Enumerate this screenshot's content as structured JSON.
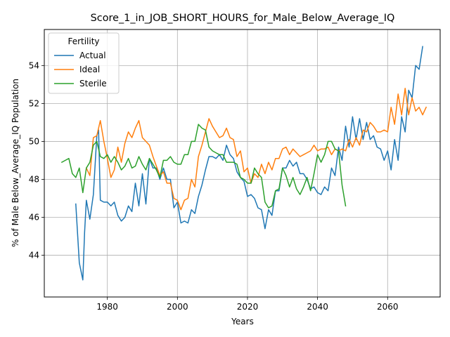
{
  "chart_data": {
    "type": "line",
    "title": "Score_1_in_JOB_SHORT_HOURS_for_Male_Below_Average_IQ",
    "xlabel": "Years",
    "ylabel": "% of Male Below_Average_IQ Population",
    "xlim": [
      1962,
      2075
    ],
    "ylim": [
      41.8,
      55.9
    ],
    "xticks": [
      1980,
      2000,
      2020,
      2040,
      2060
    ],
    "yticks": [
      44,
      46,
      48,
      50,
      52,
      54
    ],
    "grid": true,
    "legend": {
      "title": "Fertility",
      "placement": "top-left"
    },
    "series": [
      {
        "name": "Actual",
        "color": "#1f77b4",
        "points": [
          [
            1971,
            46.7
          ],
          [
            1972,
            43.6
          ],
          [
            1973,
            42.7
          ],
          [
            1973.5,
            45.2
          ],
          [
            1974,
            46.9
          ],
          [
            1975,
            45.9
          ],
          [
            1976,
            47.2
          ],
          [
            1977,
            50.3
          ],
          [
            1977.5,
            50.6
          ],
          [
            1978,
            46.9
          ],
          [
            1979,
            46.8
          ],
          [
            1980,
            46.8
          ],
          [
            1981,
            46.6
          ],
          [
            1982,
            46.8
          ],
          [
            1983,
            46.1
          ],
          [
            1984,
            45.8
          ],
          [
            1985,
            46.0
          ],
          [
            1986,
            46.6
          ],
          [
            1987,
            46.3
          ],
          [
            1988,
            47.8
          ],
          [
            1989,
            46.6
          ],
          [
            1990,
            48.3
          ],
          [
            1991,
            46.7
          ],
          [
            1992,
            49.1
          ],
          [
            1993,
            48.6
          ],
          [
            1994,
            48.6
          ],
          [
            1995,
            48.0
          ],
          [
            1996,
            48.6
          ],
          [
            1997,
            48.0
          ],
          [
            1998,
            48.0
          ],
          [
            1999,
            46.5
          ],
          [
            2000,
            46.8
          ],
          [
            2001,
            45.7
          ],
          [
            2002,
            45.8
          ],
          [
            2003,
            45.7
          ],
          [
            2004,
            46.4
          ],
          [
            2005,
            46.2
          ],
          [
            2006,
            47.1
          ],
          [
            2007,
            47.7
          ],
          [
            2008,
            48.5
          ],
          [
            2009,
            49.2
          ],
          [
            2010,
            49.2
          ],
          [
            2011,
            49.1
          ],
          [
            2012,
            49.3
          ],
          [
            2013,
            49.0
          ],
          [
            2014,
            49.8
          ],
          [
            2015,
            49.3
          ],
          [
            2016,
            49.1
          ],
          [
            2017,
            48.4
          ],
          [
            2018,
            48.1
          ],
          [
            2019,
            47.9
          ],
          [
            2020,
            47.1
          ],
          [
            2021,
            47.2
          ],
          [
            2022,
            47.0
          ],
          [
            2023,
            46.5
          ],
          [
            2024,
            46.4
          ],
          [
            2025,
            45.4
          ],
          [
            2026,
            46.4
          ],
          [
            2027,
            46.1
          ],
          [
            2028,
            47.4
          ],
          [
            2029,
            47.4
          ],
          [
            2030,
            48.6
          ],
          [
            2031,
            48.6
          ],
          [
            2032,
            49.0
          ],
          [
            2033,
            48.7
          ],
          [
            2034,
            48.9
          ],
          [
            2035,
            48.3
          ],
          [
            2036,
            48.3
          ],
          [
            2037,
            48.0
          ],
          [
            2038,
            47.5
          ],
          [
            2039,
            47.6
          ],
          [
            2040,
            47.3
          ],
          [
            2041,
            47.2
          ],
          [
            2042,
            47.6
          ],
          [
            2043,
            47.4
          ],
          [
            2044,
            48.6
          ],
          [
            2045,
            48.2
          ],
          [
            2046,
            49.7
          ],
          [
            2047,
            49.0
          ],
          [
            2048,
            50.8
          ],
          [
            2049,
            49.7
          ],
          [
            2050,
            51.3
          ],
          [
            2051,
            50.1
          ],
          [
            2052,
            51.2
          ],
          [
            2053,
            50.1
          ],
          [
            2054,
            51.0
          ],
          [
            2055,
            50.1
          ],
          [
            2056,
            50.3
          ],
          [
            2057,
            49.7
          ],
          [
            2058,
            49.6
          ],
          [
            2059,
            49.0
          ],
          [
            2060,
            49.5
          ],
          [
            2061,
            48.5
          ],
          [
            2062,
            50.1
          ],
          [
            2063,
            49.0
          ],
          [
            2064,
            51.3
          ],
          [
            2065,
            50.5
          ],
          [
            2066,
            52.7
          ],
          [
            2067,
            52.3
          ],
          [
            2068,
            54.0
          ],
          [
            2069,
            53.8
          ],
          [
            2070,
            55.0
          ]
        ]
      },
      {
        "name": "Ideal",
        "color": "#ff7f0e",
        "points": [
          [
            1974,
            48.6
          ],
          [
            1975,
            48.2
          ],
          [
            1976,
            50.2
          ],
          [
            1977,
            50.3
          ],
          [
            1978,
            51.1
          ],
          [
            1979,
            50.0
          ],
          [
            1980,
            49.1
          ],
          [
            1981,
            48.1
          ],
          [
            1982,
            48.5
          ],
          [
            1983,
            49.7
          ],
          [
            1984,
            48.9
          ],
          [
            1985,
            49.9
          ],
          [
            1986,
            50.5
          ],
          [
            1987,
            50.2
          ],
          [
            1988,
            50.7
          ],
          [
            1989,
            51.1
          ],
          [
            1990,
            50.2
          ],
          [
            1991,
            50.0
          ],
          [
            1992,
            49.8
          ],
          [
            1993,
            49.2
          ],
          [
            1994,
            48.7
          ],
          [
            1995,
            48.2
          ],
          [
            1996,
            48.4
          ],
          [
            1997,
            47.8
          ],
          [
            1998,
            47.8
          ],
          [
            1999,
            47.0
          ],
          [
            2000,
            46.9
          ],
          [
            2001,
            46.4
          ],
          [
            2002,
            46.9
          ],
          [
            2003,
            47.0
          ],
          [
            2004,
            48.0
          ],
          [
            2005,
            47.6
          ],
          [
            2006,
            49.2
          ],
          [
            2007,
            49.8
          ],
          [
            2008,
            50.5
          ],
          [
            2009,
            51.2
          ],
          [
            2010,
            50.8
          ],
          [
            2011,
            50.5
          ],
          [
            2012,
            50.2
          ],
          [
            2013,
            50.3
          ],
          [
            2014,
            50.7
          ],
          [
            2015,
            50.2
          ],
          [
            2016,
            50.1
          ],
          [
            2017,
            49.2
          ],
          [
            2018,
            49.5
          ],
          [
            2019,
            48.4
          ],
          [
            2020,
            48.6
          ],
          [
            2021,
            47.8
          ],
          [
            2022,
            48.3
          ],
          [
            2023,
            48.1
          ],
          [
            2024,
            48.8
          ],
          [
            2025,
            48.3
          ],
          [
            2026,
            48.9
          ],
          [
            2027,
            48.5
          ],
          [
            2028,
            49.1
          ],
          [
            2029,
            49.1
          ],
          [
            2030,
            49.6
          ],
          [
            2031,
            49.7
          ],
          [
            2032,
            49.3
          ],
          [
            2033,
            49.6
          ],
          [
            2034,
            49.4
          ],
          [
            2035,
            49.2
          ],
          [
            2036,
            49.3
          ],
          [
            2037,
            49.4
          ],
          [
            2038,
            49.5
          ],
          [
            2039,
            49.8
          ],
          [
            2040,
            49.5
          ],
          [
            2041,
            49.6
          ],
          [
            2042,
            49.6
          ],
          [
            2043,
            49.7
          ],
          [
            2044,
            49.3
          ],
          [
            2045,
            49.6
          ],
          [
            2046,
            49.5
          ],
          [
            2047,
            49.6
          ],
          [
            2048,
            49.5
          ],
          [
            2049,
            50.1
          ],
          [
            2050,
            49.7
          ],
          [
            2051,
            50.2
          ],
          [
            2052,
            49.8
          ],
          [
            2053,
            50.6
          ],
          [
            2054,
            50.5
          ],
          [
            2055,
            51.0
          ],
          [
            2056,
            50.8
          ],
          [
            2057,
            50.5
          ],
          [
            2058,
            50.5
          ],
          [
            2059,
            50.6
          ],
          [
            2060,
            50.5
          ],
          [
            2061,
            51.8
          ],
          [
            2062,
            50.9
          ],
          [
            2063,
            52.5
          ],
          [
            2064,
            51.4
          ],
          [
            2065,
            52.8
          ],
          [
            2066,
            51.4
          ],
          [
            2067,
            52.3
          ],
          [
            2068,
            51.6
          ],
          [
            2069,
            51.8
          ],
          [
            2070,
            51.4
          ],
          [
            2071,
            51.8
          ]
        ]
      },
      {
        "name": "Sterile",
        "color": "#2ca02c",
        "points": [
          [
            1967,
            48.9
          ],
          [
            1968,
            49.0
          ],
          [
            1969,
            49.1
          ],
          [
            1970,
            48.3
          ],
          [
            1971,
            48.1
          ],
          [
            1972,
            48.6
          ],
          [
            1973,
            47.3
          ],
          [
            1974,
            48.6
          ],
          [
            1975,
            48.9
          ],
          [
            1976,
            49.8
          ],
          [
            1977,
            50.0
          ],
          [
            1978,
            49.2
          ],
          [
            1979,
            49.1
          ],
          [
            1980,
            49.3
          ],
          [
            1981,
            48.9
          ],
          [
            1982,
            49.2
          ],
          [
            1983,
            48.9
          ],
          [
            1984,
            48.5
          ],
          [
            1985,
            48.7
          ],
          [
            1986,
            49.1
          ],
          [
            1987,
            48.6
          ],
          [
            1988,
            48.7
          ],
          [
            1989,
            49.2
          ],
          [
            1990,
            48.8
          ],
          [
            1991,
            48.5
          ],
          [
            1992,
            49.1
          ],
          [
            1993,
            48.8
          ],
          [
            1994,
            48.5
          ],
          [
            1995,
            48.1
          ],
          [
            1996,
            49.0
          ],
          [
            1997,
            49.0
          ],
          [
            1998,
            49.2
          ],
          [
            1999,
            48.9
          ],
          [
            2000,
            48.8
          ],
          [
            2001,
            48.8
          ],
          [
            2002,
            49.3
          ],
          [
            2003,
            49.3
          ],
          [
            2004,
            50.0
          ],
          [
            2005,
            50.0
          ],
          [
            2006,
            50.9
          ],
          [
            2007,
            50.7
          ],
          [
            2008,
            50.6
          ],
          [
            2009,
            49.7
          ],
          [
            2010,
            49.5
          ],
          [
            2011,
            49.4
          ],
          [
            2012,
            49.3
          ],
          [
            2013,
            49.3
          ],
          [
            2014,
            48.9
          ],
          [
            2015,
            48.9
          ],
          [
            2016,
            48.9
          ],
          [
            2017,
            48.8
          ],
          [
            2018,
            48.1
          ],
          [
            2019,
            48.0
          ],
          [
            2020,
            47.8
          ],
          [
            2021,
            47.8
          ],
          [
            2022,
            48.6
          ],
          [
            2023,
            48.3
          ],
          [
            2024,
            48.1
          ],
          [
            2025,
            46.8
          ],
          [
            2026,
            46.5
          ],
          [
            2027,
            46.6
          ],
          [
            2028,
            47.4
          ],
          [
            2029,
            47.5
          ],
          [
            2030,
            48.6
          ],
          [
            2031,
            48.2
          ],
          [
            2032,
            47.6
          ],
          [
            2033,
            48.1
          ],
          [
            2034,
            47.5
          ],
          [
            2035,
            47.2
          ],
          [
            2036,
            47.6
          ],
          [
            2037,
            48.1
          ],
          [
            2038,
            47.4
          ],
          [
            2039,
            48.3
          ],
          [
            2040,
            49.3
          ],
          [
            2041,
            48.9
          ],
          [
            2042,
            49.3
          ],
          [
            2043,
            50.0
          ],
          [
            2044,
            50.0
          ],
          [
            2045,
            49.6
          ],
          [
            2046,
            49.5
          ],
          [
            2047,
            47.7
          ],
          [
            2048,
            46.6
          ]
        ]
      }
    ]
  }
}
